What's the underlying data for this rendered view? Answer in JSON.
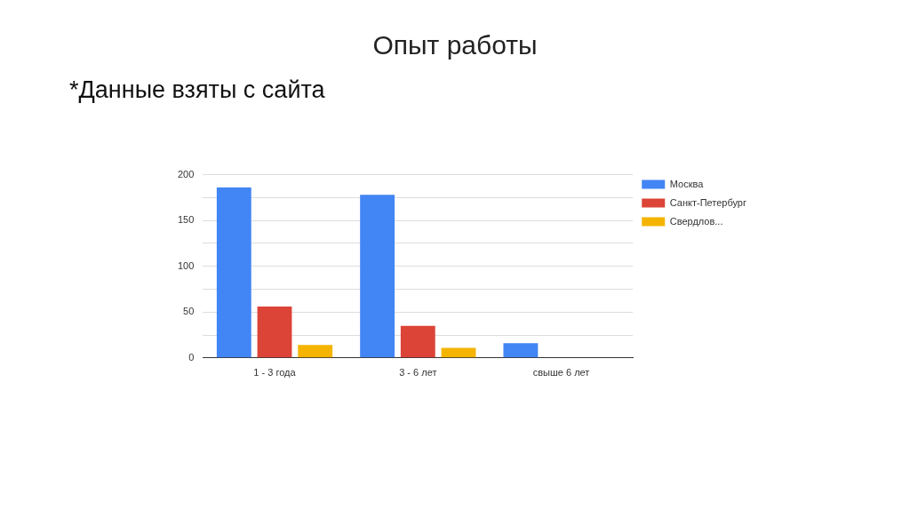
{
  "chart_data": {
    "type": "bar",
    "title": "Опыт работы",
    "subtitle": "*Данные взяты с сайта",
    "categories": [
      "1 - 3 года",
      "3 - 6 лет",
      "свыше 6 лет"
    ],
    "series": [
      {
        "name": "Москва",
        "color": "#4285f4",
        "values": [
          186,
          178,
          16
        ]
      },
      {
        "name": "Санкт-Петербург",
        "color": "#db4437",
        "values": [
          56,
          35,
          0
        ]
      },
      {
        "name": "Свердлов...",
        "color": "#f4b400",
        "values": [
          14,
          11,
          0
        ]
      }
    ],
    "ylim": [
      0,
      200
    ],
    "yticks": [
      0,
      {
        "value": 25,
        "label": null
      },
      50,
      {
        "value": 75,
        "label": null
      },
      100,
      {
        "value": 125,
        "label": null
      },
      150,
      {
        "value": 175,
        "label": null
      },
      200
    ],
    "grid": "y",
    "legend": "top right"
  }
}
